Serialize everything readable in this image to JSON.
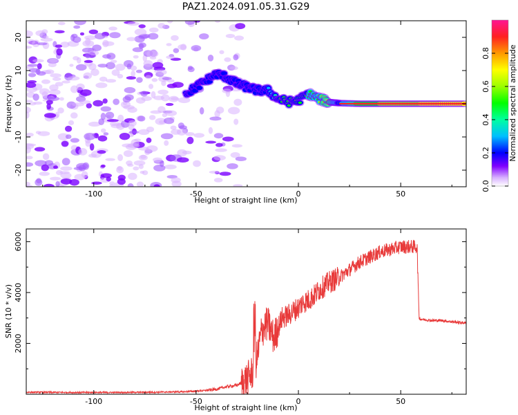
{
  "title": "PAZ1.2024.091.05.31.G29",
  "chart_data": [
    {
      "type": "heatmap",
      "xlabel": "Height of straight line (km)",
      "ylabel": "Frequency (Hz)",
      "xlim": [
        -133,
        82
      ],
      "ylim": [
        -25,
        25
      ],
      "xticks": [
        -100,
        -50,
        0,
        50
      ],
      "yticks": [
        -20,
        -10,
        0,
        10,
        20
      ],
      "colorbar": {
        "label": "Normalized spectral amplitude",
        "ticks": [
          "0.0",
          "0.2",
          "0.4",
          "0.6",
          "0.8"
        ],
        "tick_values": [
          0.0,
          0.2,
          0.4,
          0.6,
          0.8
        ],
        "range": [
          0,
          1
        ]
      },
      "ridge": {
        "description_values": "frequency (Hz) vs height (km) of the strong signal ridge",
        "x": [
          -55,
          -50,
          -45,
          -40,
          -35,
          -30,
          -25,
          -20,
          -15,
          -10,
          -5,
          0,
          5,
          10,
          15,
          20,
          30,
          40,
          50,
          60,
          70,
          82
        ],
        "y": [
          3,
          5,
          7,
          9,
          8,
          6,
          5,
          4,
          4,
          1.5,
          0.5,
          1,
          3,
          1.5,
          0.5,
          0.2,
          0,
          0,
          0,
          0,
          0,
          0
        ],
        "amplitude": [
          0.2,
          0.2,
          0.2,
          0.2,
          0.2,
          0.2,
          0.2,
          0.25,
          0.3,
          0.5,
          0.5,
          0.5,
          0.55,
          0.6,
          0.75,
          0.5,
          0.8,
          0.85,
          0.9,
          0.95,
          0.95,
          0.95
        ]
      },
      "grid": false
    },
    {
      "type": "line",
      "xlabel": "Height of straight line (km)",
      "ylabel": "SNR (10 * v/v)",
      "xlim": [
        -133,
        82
      ],
      "ylim": [
        0,
        6500
      ],
      "xticks": [
        -100,
        -50,
        0,
        50
      ],
      "yticks": [
        2000,
        4000,
        6000
      ],
      "color": "#e83a3a",
      "grid": false,
      "series": [
        {
          "x": [
            -133,
            -110,
            -90,
            -70,
            -55,
            -45,
            -40,
            -35,
            -30,
            -25,
            -22,
            -20,
            -18,
            -15,
            -12,
            -10,
            -8,
            -5,
            -2,
            0,
            2,
            5,
            8,
            10,
            15,
            20,
            25,
            30,
            35,
            40,
            45,
            50,
            55,
            58,
            59,
            60,
            65,
            70,
            75,
            82
          ],
          "y": [
            80,
            70,
            70,
            80,
            100,
            150,
            200,
            300,
            350,
            600,
            900,
            1500,
            2500,
            2800,
            2200,
            2600,
            3000,
            3100,
            3300,
            3400,
            3600,
            3700,
            3900,
            4100,
            4400,
            4600,
            4900,
            5200,
            5400,
            5600,
            5700,
            5800,
            5800,
            5800,
            3000,
            2950,
            2900,
            2900,
            2850,
            2800
          ]
        }
      ]
    }
  ]
}
